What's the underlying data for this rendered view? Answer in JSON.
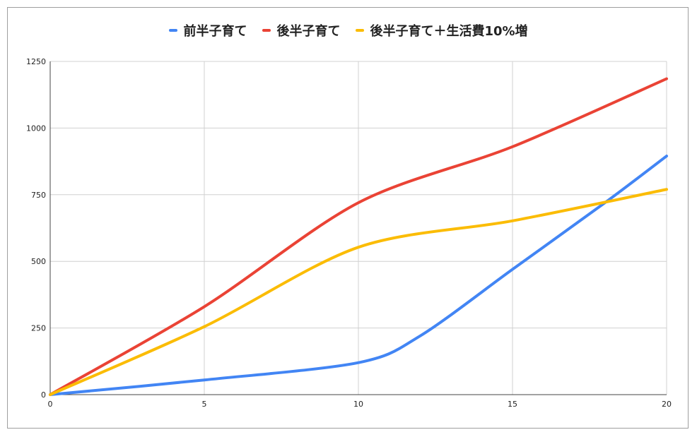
{
  "chart_data": {
    "type": "line",
    "x": [
      0,
      5,
      10,
      15,
      20
    ],
    "xlim": [
      0,
      20
    ],
    "ylim": [
      0,
      1250
    ],
    "xticks": [
      "0",
      "5",
      "10",
      "15",
      "20"
    ],
    "yticks": [
      "0",
      "250",
      "500",
      "750",
      "1000",
      "1250"
    ],
    "grid": true,
    "legend_position": "top",
    "series": [
      {
        "name": "前半子育て",
        "color": "#4285f4",
        "points": [
          [
            0,
            0
          ],
          [
            5,
            55
          ],
          [
            10,
            120
          ],
          [
            12,
            220
          ],
          [
            15,
            470
          ],
          [
            18,
            720
          ],
          [
            20,
            895
          ]
        ]
      },
      {
        "name": "後半子育て",
        "color": "#ea4335",
        "points": [
          [
            0,
            0
          ],
          [
            5,
            330
          ],
          [
            10,
            720
          ],
          [
            15,
            930
          ],
          [
            20,
            1185
          ]
        ]
      },
      {
        "name": "後半子育て＋生活費10%増",
        "color": "#fbbc04",
        "points": [
          [
            0,
            0
          ],
          [
            5,
            255
          ],
          [
            10,
            553
          ],
          [
            15,
            652
          ],
          [
            20,
            770
          ]
        ]
      }
    ]
  }
}
